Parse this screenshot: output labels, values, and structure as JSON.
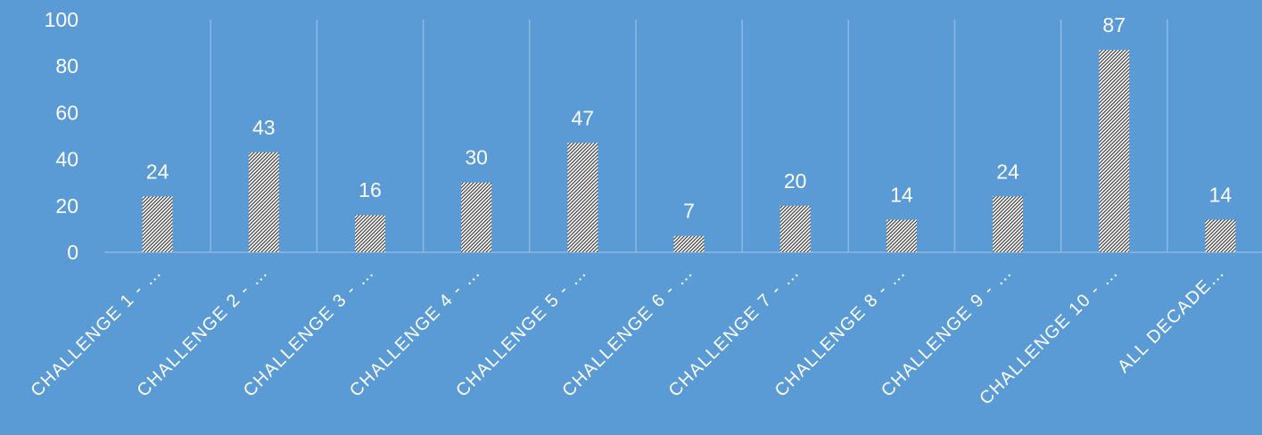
{
  "chart_data": {
    "type": "bar",
    "categories": [
      "CHALLENGE 1 - …",
      "CHALLENGE 2 - …",
      "CHALLENGE 3 - …",
      "CHALLENGE 4 - …",
      "CHALLENGE 5 - …",
      "CHALLENGE 6 - …",
      "CHALLENGE 7 - …",
      "CHALLENGE 8 - …",
      "CHALLENGE 9 - …",
      "CHALLENGE 10 - …",
      "ALL DECADE…"
    ],
    "values": [
      24,
      43,
      16,
      30,
      47,
      7,
      20,
      14,
      24,
      87,
      14
    ],
    "ylim": [
      0,
      100
    ],
    "yticks": [
      0,
      20,
      40,
      60,
      80,
      100
    ],
    "ytick_labels": [
      "0",
      "20",
      "40",
      "60",
      "80",
      "100"
    ],
    "data_labels": [
      "24",
      "43",
      "16",
      "30",
      "47",
      "7",
      "20",
      "14",
      "24",
      "87",
      "14"
    ],
    "title": "",
    "xlabel": "",
    "ylabel": "",
    "grid": "vertical",
    "legend": "none",
    "colors": {
      "background": "#5b9bd5",
      "bar_fill": "#ffffff",
      "bar_hatch": "#404040",
      "gridline": "#8db8e3",
      "text": "#ffffff"
    }
  }
}
